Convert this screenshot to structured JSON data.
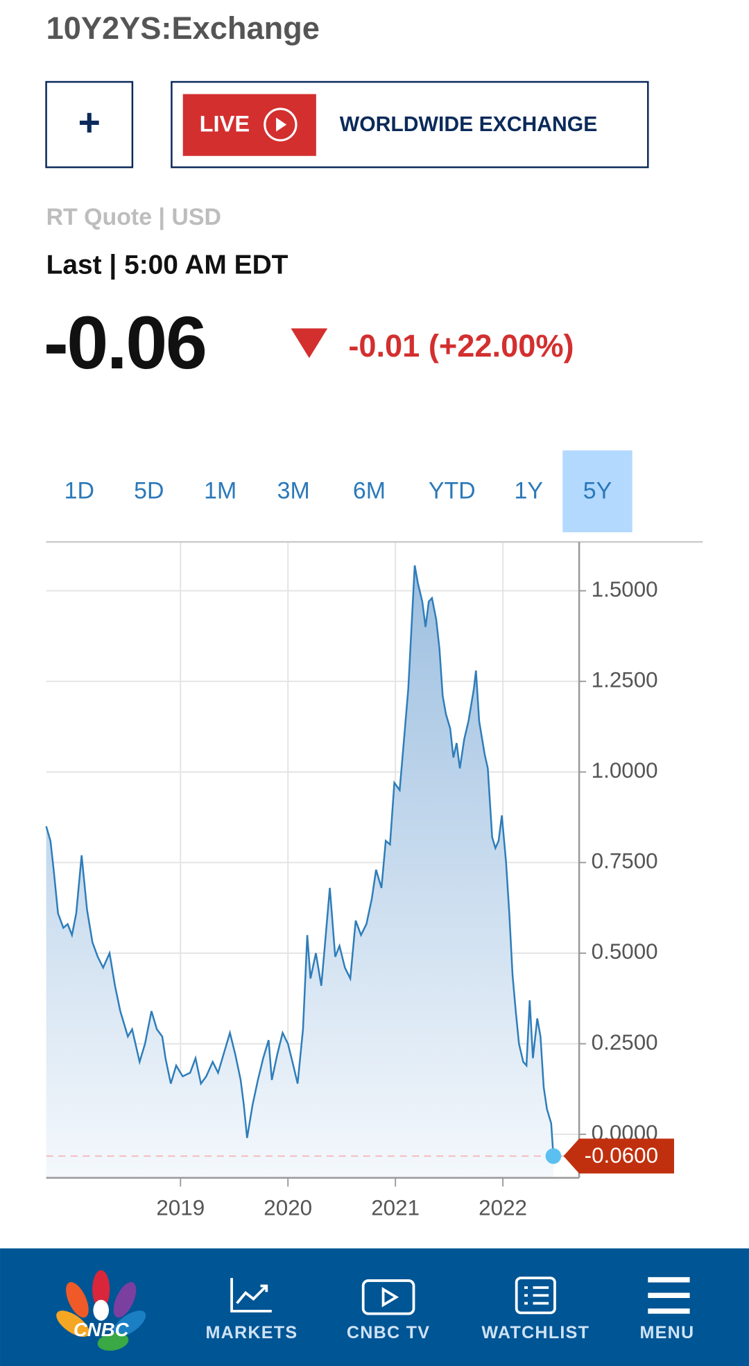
{
  "header": {
    "title": "10Y2YS:Exchange"
  },
  "buttons": {
    "add": "+",
    "live": "LIVE",
    "program": "WORLDWIDE EXCHANGE"
  },
  "quote": {
    "source": "RT Quote | USD",
    "time": "Last | 5:00 AM EDT",
    "price": "-0.06",
    "change": "-0.01 (+22.00%)"
  },
  "ranges": {
    "options": [
      "1D",
      "5D",
      "1M",
      "3M",
      "6M",
      "YTD",
      "1Y",
      "5Y"
    ],
    "selected": 7
  },
  "chart_data": {
    "type": "area",
    "color": "#2e7dba",
    "grid": true,
    "x": [
      2017.75,
      2017.79,
      2017.82,
      2017.86,
      2017.91,
      2017.95,
      2017.99,
      2018.03,
      2018.08,
      2018.13,
      2018.18,
      2018.23,
      2018.28,
      2018.34,
      2018.39,
      2018.44,
      2018.51,
      2018.55,
      2018.62,
      2018.67,
      2018.73,
      2018.78,
      2018.83,
      2018.86,
      2018.91,
      2018.96,
      2019.02,
      2019.09,
      2019.14,
      2019.19,
      2019.24,
      2019.3,
      2019.35,
      2019.41,
      2019.46,
      2019.51,
      2019.56,
      2019.59,
      2019.62,
      2019.67,
      2019.72,
      2019.77,
      2019.82,
      2019.85,
      2019.9,
      2019.95,
      2020.0,
      2020.05,
      2020.09,
      2020.14,
      2020.18,
      2020.21,
      2020.26,
      2020.31,
      2020.34,
      2020.39,
      2020.44,
      2020.48,
      2020.53,
      2020.58,
      2020.63,
      2020.68,
      2020.73,
      2020.78,
      2020.82,
      2020.87,
      2020.91,
      2020.95,
      2020.99,
      2021.04,
      2021.08,
      2021.12,
      2021.15,
      2021.18,
      2021.21,
      2021.25,
      2021.28,
      2021.31,
      2021.34,
      2021.38,
      2021.41,
      2021.44,
      2021.47,
      2021.51,
      2021.54,
      2021.57,
      2021.6,
      2021.64,
      2021.68,
      2021.73,
      2021.75,
      2021.78,
      2021.83,
      2021.86,
      2021.9,
      2021.93,
      2021.96,
      2021.99,
      2022.03,
      2022.06,
      2022.09,
      2022.12,
      2022.15,
      2022.19,
      2022.22,
      2022.25,
      2022.28,
      2022.32,
      2022.35,
      2022.38,
      2022.41,
      2022.45,
      2022.47
    ],
    "values": [
      0.85,
      0.81,
      0.73,
      0.61,
      0.57,
      0.58,
      0.55,
      0.61,
      0.77,
      0.62,
      0.53,
      0.49,
      0.46,
      0.5,
      0.41,
      0.34,
      0.27,
      0.29,
      0.2,
      0.25,
      0.34,
      0.29,
      0.27,
      0.21,
      0.14,
      0.19,
      0.16,
      0.17,
      0.21,
      0.14,
      0.16,
      0.2,
      0.17,
      0.23,
      0.28,
      0.22,
      0.15,
      0.08,
      -0.01,
      0.08,
      0.15,
      0.21,
      0.26,
      0.15,
      0.22,
      0.28,
      0.25,
      0.19,
      0.14,
      0.29,
      0.55,
      0.43,
      0.5,
      0.41,
      0.51,
      0.68,
      0.49,
      0.52,
      0.46,
      0.43,
      0.59,
      0.55,
      0.58,
      0.65,
      0.73,
      0.68,
      0.81,
      0.8,
      0.97,
      0.95,
      1.09,
      1.23,
      1.4,
      1.57,
      1.52,
      1.47,
      1.4,
      1.47,
      1.48,
      1.42,
      1.34,
      1.21,
      1.16,
      1.12,
      1.04,
      1.08,
      1.01,
      1.09,
      1.14,
      1.23,
      1.28,
      1.14,
      1.05,
      1.01,
      0.82,
      0.79,
      0.81,
      0.88,
      0.75,
      0.61,
      0.44,
      0.34,
      0.25,
      0.2,
      0.19,
      0.37,
      0.21,
      0.32,
      0.27,
      0.13,
      0.07,
      0.03,
      -0.06
    ],
    "last_value_label": "-0.0600",
    "xlim": [
      2017.75,
      2022.71
    ],
    "xticks": [
      2019,
      2020,
      2021,
      2022
    ],
    "ylim": [
      -0.12,
      1.635
    ],
    "yticks": [
      {
        "value": 0,
        "label": "0.0000"
      },
      {
        "value": 0.25,
        "label": "0.2500"
      },
      {
        "value": 0.5,
        "label": "0.5000"
      },
      {
        "value": 0.75,
        "label": "0.7500"
      },
      {
        "value": 1,
        "label": "1.0000"
      },
      {
        "value": 1.25,
        "label": "1.2500"
      },
      {
        "value": 1.5,
        "label": "1.5000"
      }
    ]
  },
  "nav": {
    "logo": "CNBC",
    "items": [
      "MARKETS",
      "CNBC TV",
      "WATCHLIST",
      "MENU"
    ]
  }
}
